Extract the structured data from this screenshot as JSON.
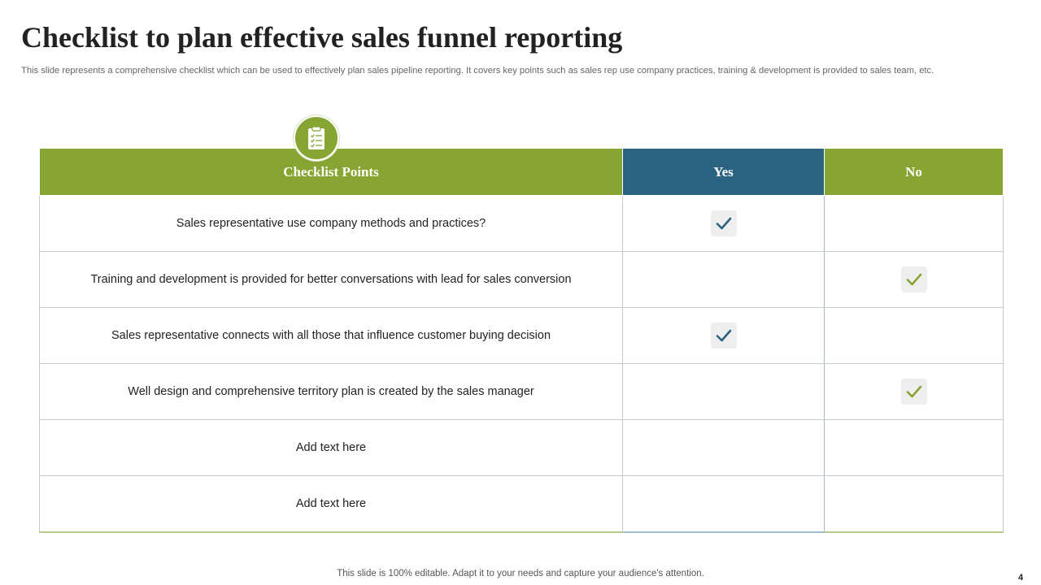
{
  "slide": {
    "title": "Checklist  to plan effective sales funnel reporting",
    "subtitle": "This slide represents a comprehensive checklist which can be used to effectively  plan sales pipeline reporting. It covers key points such as sales rep use company practices, training & development is provided to sales team, etc.",
    "badge_icon": "clipboard-checklist-icon"
  },
  "table": {
    "headers": {
      "points": "Checklist Points",
      "yes": "Yes",
      "no": "No"
    },
    "rows": [
      {
        "point": "Sales representative use company methods and practices?",
        "answer": "yes"
      },
      {
        "point": "Training and development is provided for better conversations with lead for sales conversion",
        "answer": "no"
      },
      {
        "point": "Sales representative connects with all those that influence customer buying decision",
        "answer": "yes"
      },
      {
        "point": "Well design and comprehensive territory plan is created by the sales manager",
        "answer": "no"
      },
      {
        "point": "Add text here",
        "answer": ""
      },
      {
        "point": "Add text here",
        "answer": ""
      }
    ]
  },
  "colors": {
    "green": "#86a532",
    "blue": "#2a6380",
    "check_yes": "#2a6380",
    "check_no": "#86a532"
  },
  "footer": {
    "note": "This slide is 100% editable. Adapt it to your needs and capture your audience's attention.",
    "page_number": "4"
  }
}
